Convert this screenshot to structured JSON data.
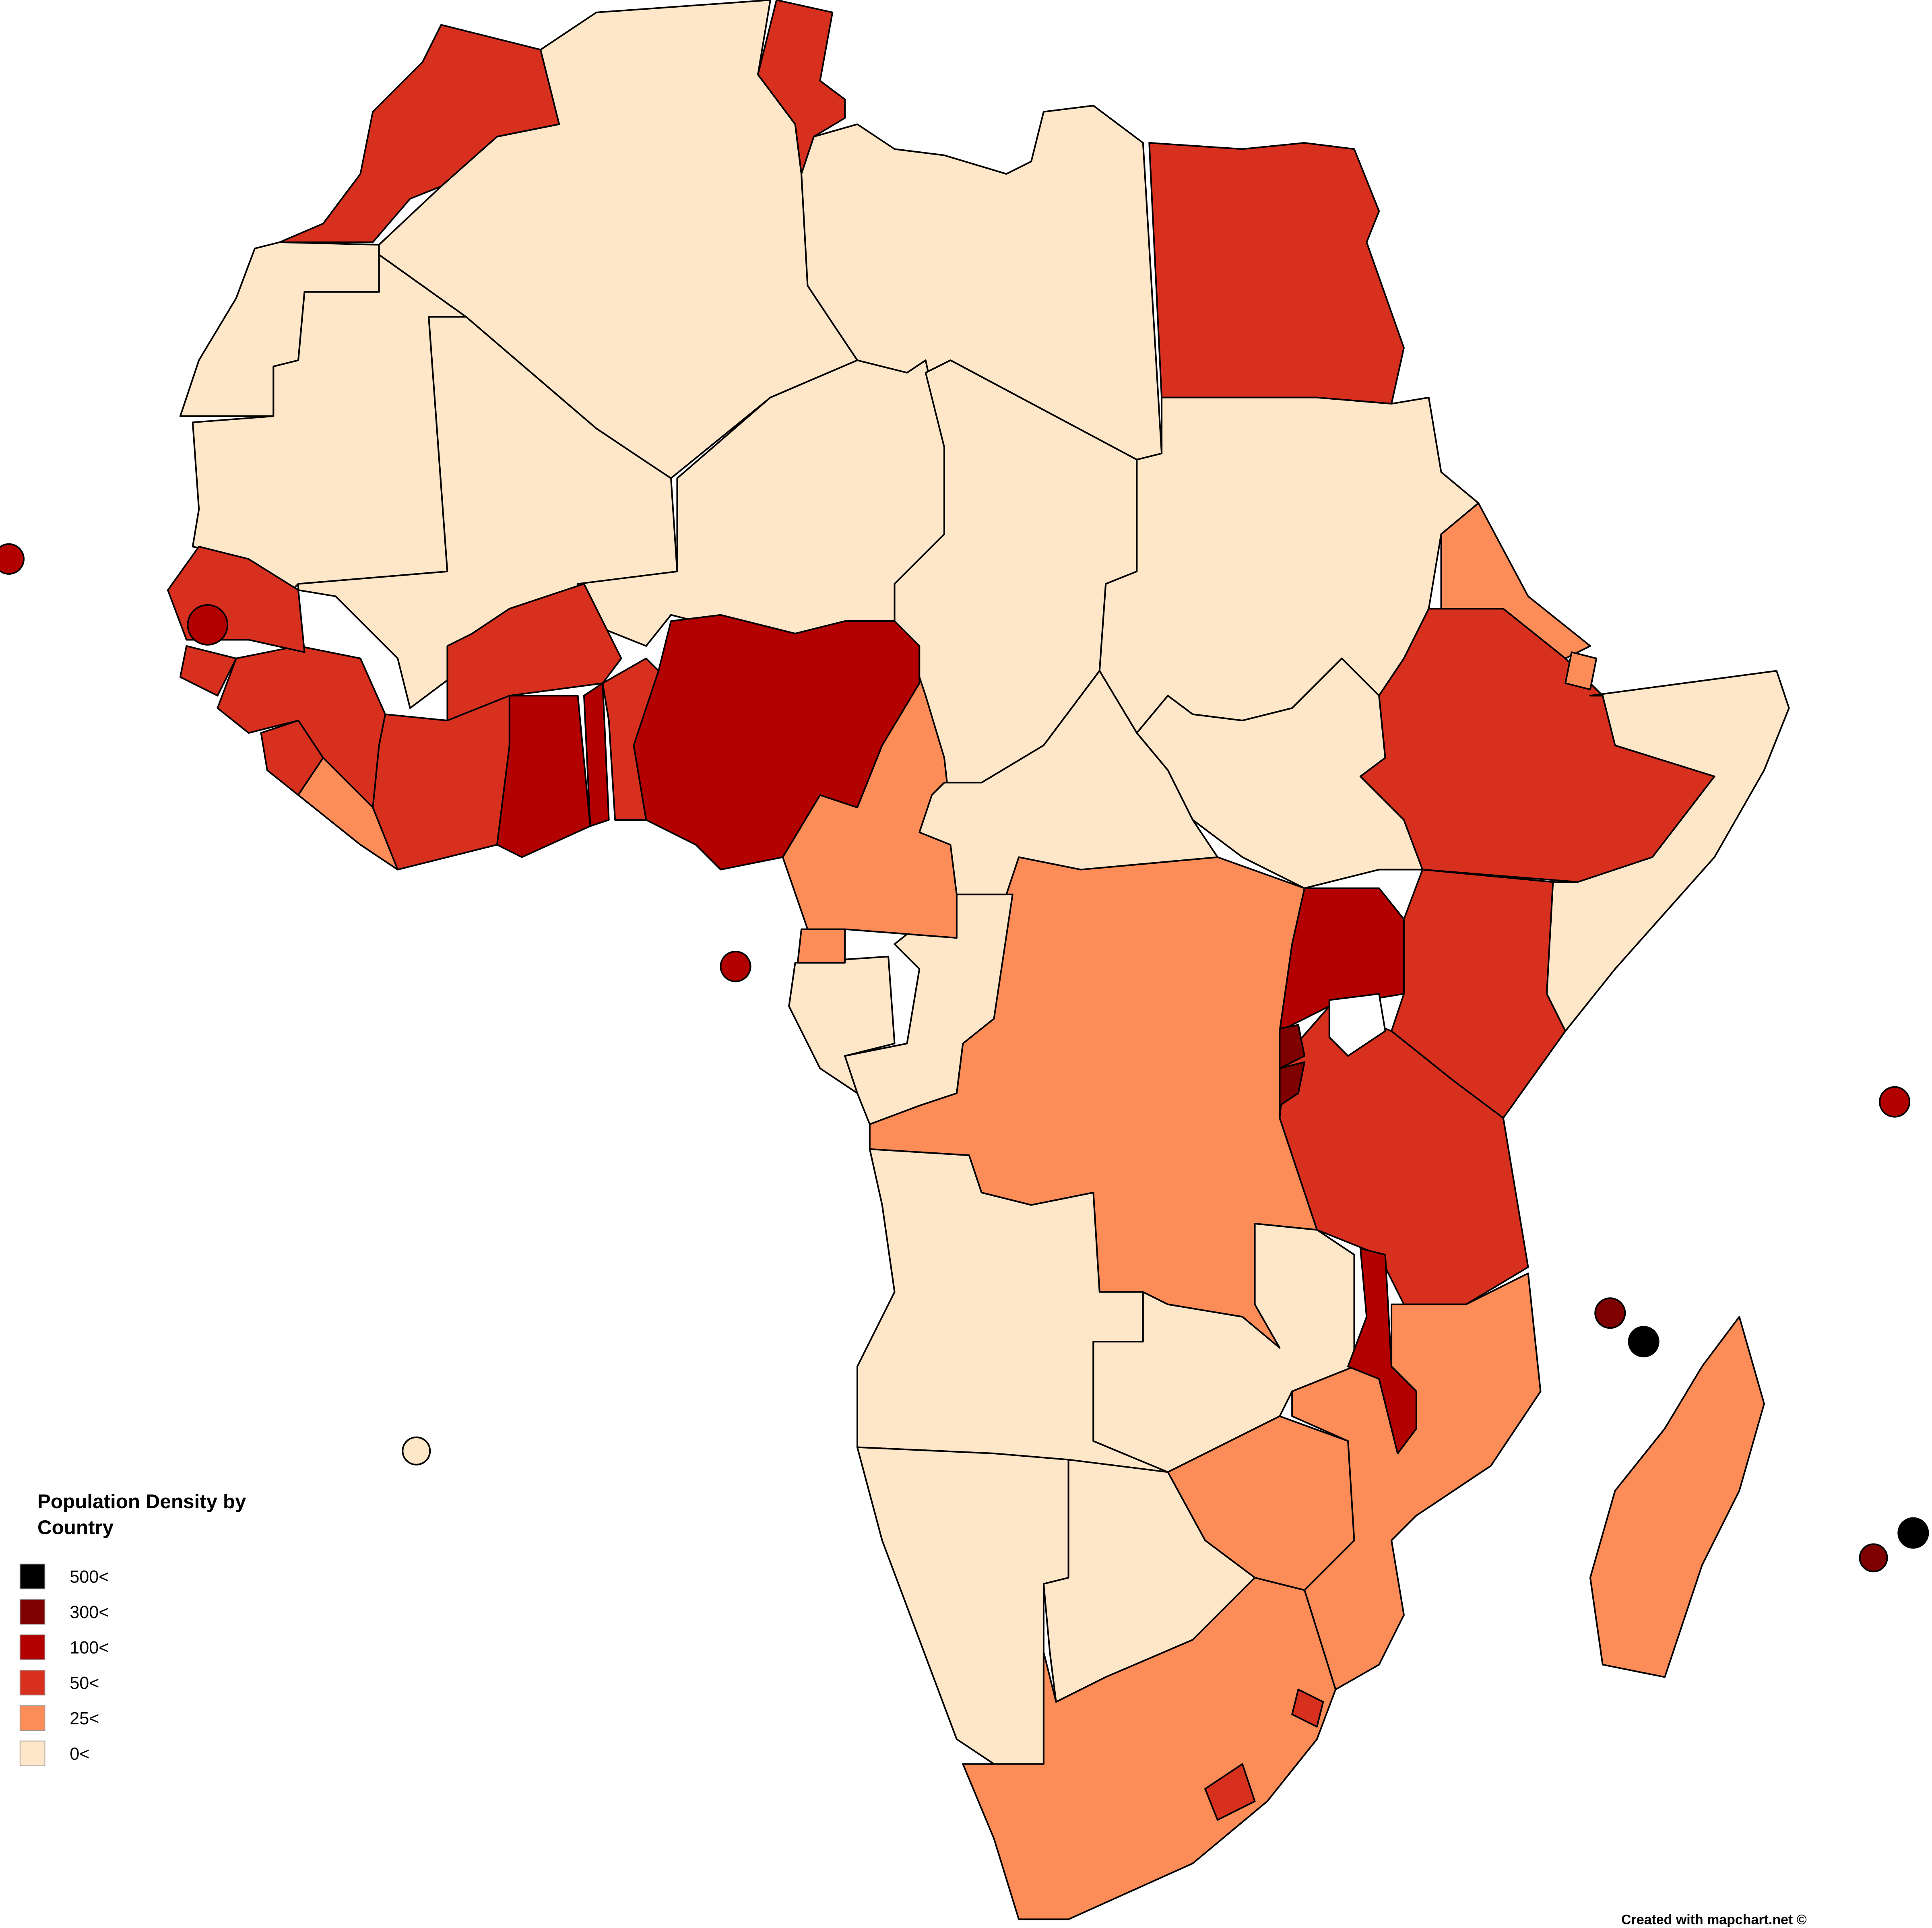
{
  "legend": {
    "title": "Population Density by Country",
    "items": [
      {
        "label": "500<",
        "color": "#000000"
      },
      {
        "label": "300<",
        "color": "#7f0000"
      },
      {
        "label": "100<",
        "color": "#b30000"
      },
      {
        "label": "50<",
        "color": "#d7301f"
      },
      {
        "label": "25<",
        "color": "#fc8d59"
      },
      {
        "label": "0<",
        "color": "#fee6c8"
      }
    ]
  },
  "credit": "Created with mapchart.net ©"
}
